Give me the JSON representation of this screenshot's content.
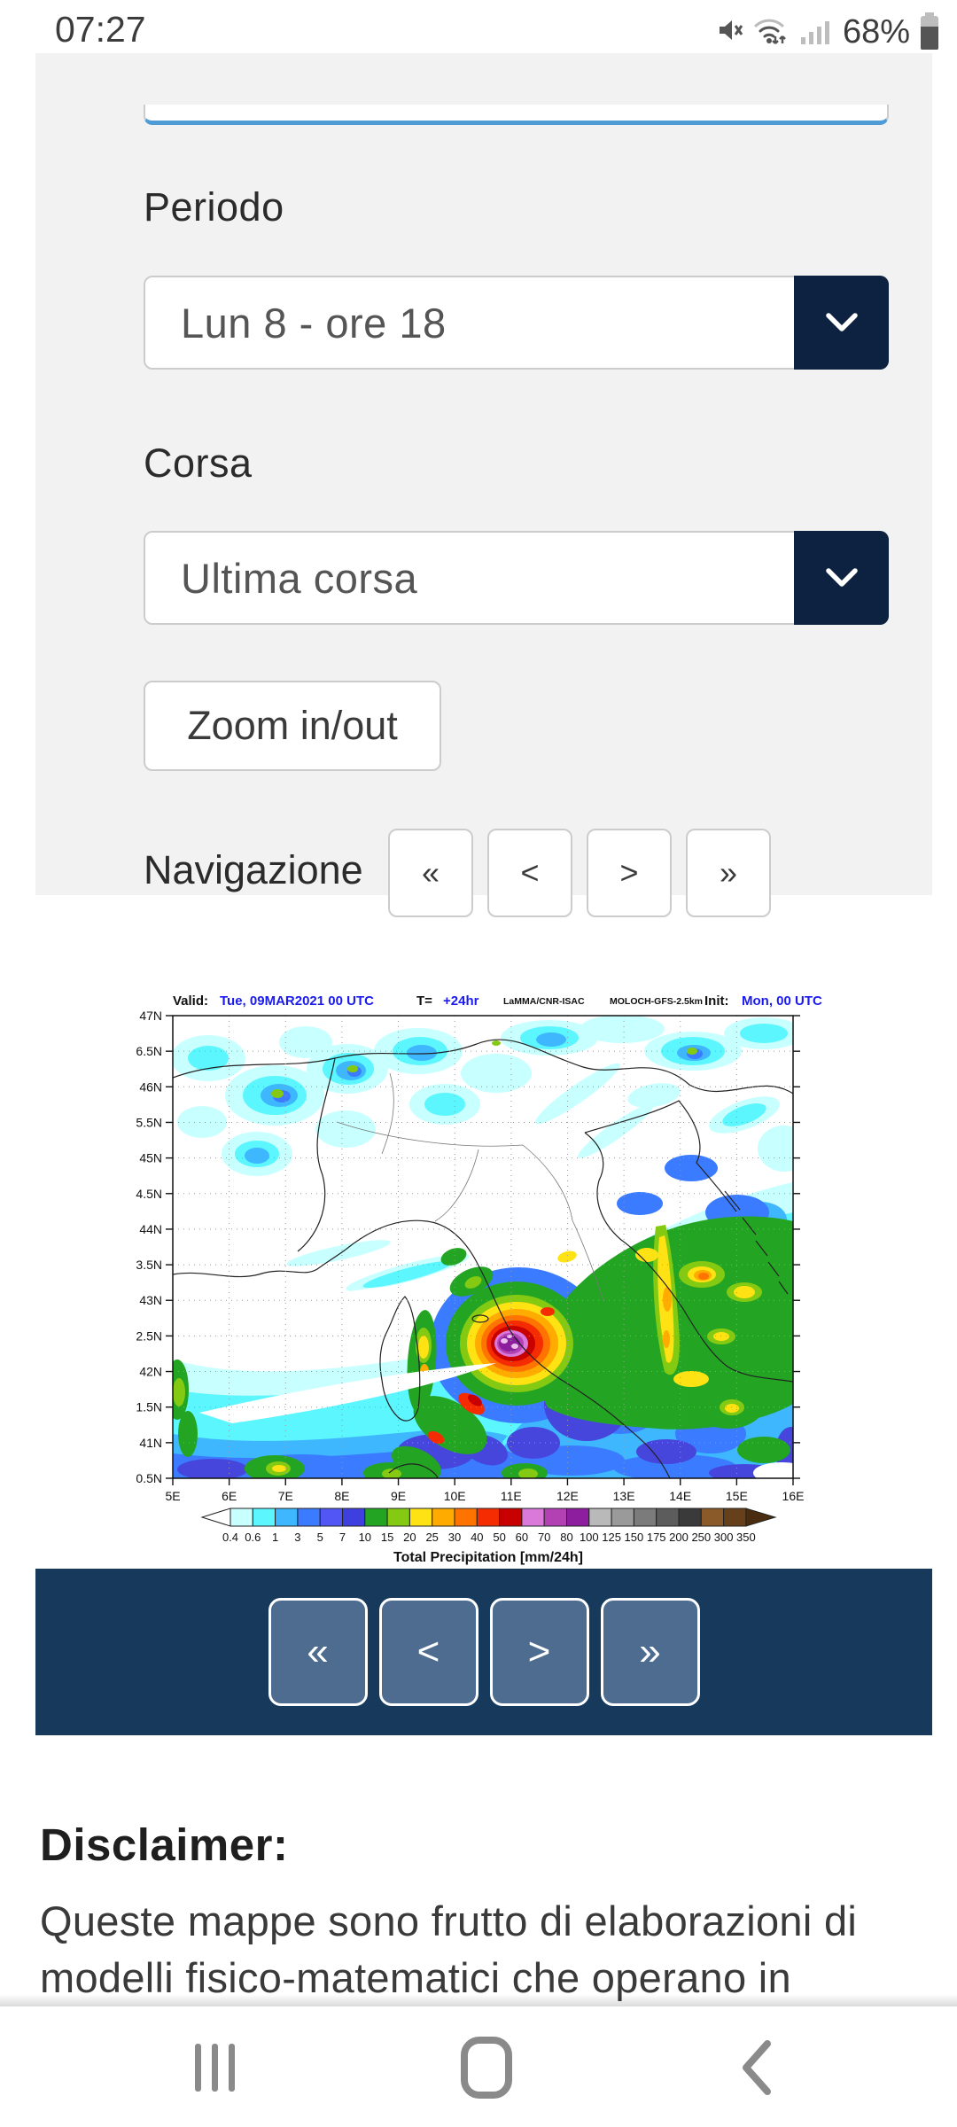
{
  "status_bar": {
    "time": "07:27",
    "battery_percent": "68%"
  },
  "controls": {
    "periodo_label": "Periodo",
    "periodo_value": "Lun 8 - ore 18",
    "corsa_label": "Corsa",
    "corsa_value": "Ultima corsa",
    "zoom_button_label": "Zoom in/out",
    "navigazione_label": "Navigazione",
    "nav_first": "«",
    "nav_prev": "<",
    "nav_next": ">",
    "nav_last": "»"
  },
  "map": {
    "header": {
      "valid_label": "Valid:",
      "valid_value": "Tue, 09MAR2021  00 UTC",
      "t_label": "T=",
      "t_value": "+24hr",
      "model_name": "LaMMA/CNR-ISAC",
      "model_config": "MOLOCH-GFS-2.5km",
      "init_label": "Init:",
      "init_value": "Mon, 00 UTC"
    },
    "lat_labels": [
      "47N",
      "6.5N",
      "46N",
      "5.5N",
      "45N",
      "4.5N",
      "44N",
      "3.5N",
      "43N",
      "2.5N",
      "42N",
      "1.5N",
      "41N",
      "0.5N"
    ],
    "lon_labels": [
      "5E",
      "6E",
      "7E",
      "8E",
      "9E",
      "10E",
      "11E",
      "12E",
      "13E",
      "14E",
      "15E",
      "16E"
    ],
    "colorbar": {
      "title": "Total Precipitation [mm/24h]",
      "tick_values": [
        "0.4",
        "0.6",
        "1",
        "3",
        "5",
        "7",
        "10",
        "15",
        "20",
        "25",
        "30",
        "40",
        "50",
        "60",
        "70",
        "80",
        "100",
        "125",
        "150",
        "175",
        "200",
        "250",
        "300",
        "350"
      ],
      "cell_colors": [
        "#c8ffff",
        "#5cf6ff",
        "#3fb7ff",
        "#3a7bff",
        "#5156f5",
        "#3f3fe0",
        "#23a523",
        "#85ca12",
        "#ffe214",
        "#ffab00",
        "#ff7300",
        "#f52c02",
        "#c80000",
        "#da79da",
        "#b341b3",
        "#8d1f9e",
        "#b9b9b9",
        "#9a9a9a",
        "#7b7b7b",
        "#5c5c5c",
        "#3a3a3a",
        "#8a5a28",
        "#66401a"
      ],
      "under_arrow_color": "#ffffff",
      "over_arrow_color": "#4a2c10"
    }
  },
  "map_nav": {
    "first": "«",
    "prev": "<",
    "next": ">",
    "last": "»"
  },
  "disclaimer": {
    "heading": "Disclaimer:",
    "body": "Queste mappe sono frutto di elaborazioni di modelli fisico-matematici che operano in"
  },
  "theme": {
    "panel_bg": "#f2f2f2",
    "navy": "#0d2240",
    "navy_bar": "#17395c",
    "nav_btn_bg": "#4d6c90",
    "focus_blue": "#4f9bd5"
  }
}
